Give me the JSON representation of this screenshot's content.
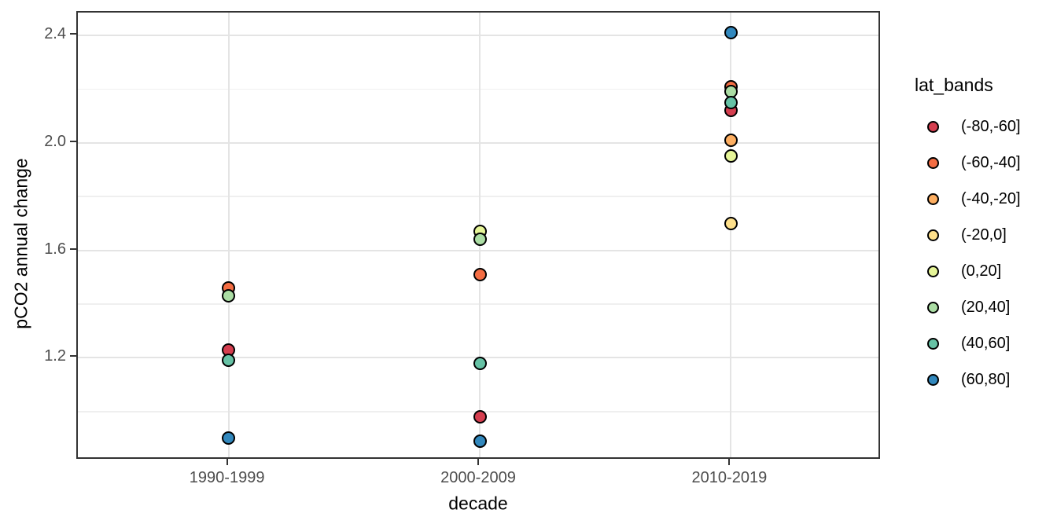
{
  "chart_data": {
    "type": "scatter",
    "title": "",
    "xlabel": "decade",
    "ylabel": "pCO2 annual change",
    "categories": [
      "1990-1999",
      "2000-2009",
      "2010-2019"
    ],
    "ylim": [
      0.818,
      2.485
    ],
    "yticks_major": [
      1.2,
      1.6,
      2.0,
      2.4
    ],
    "yticks_minor": [
      1.0,
      1.4,
      1.8,
      2.2
    ],
    "grid": true,
    "legend": {
      "title": "lat_bands",
      "position": "right"
    },
    "series": [
      {
        "name": "(-80,-60]",
        "color": "#D53E4F",
        "values": [
          1.23,
          0.98,
          2.12
        ]
      },
      {
        "name": "(-60,-40]",
        "color": "#F46D43",
        "values": [
          1.46,
          1.51,
          2.21
        ]
      },
      {
        "name": "(-40,-20]",
        "color": "#FDAE61",
        "values": [
          null,
          null,
          2.01
        ]
      },
      {
        "name": "(-20,0]",
        "color": "#FEE08B",
        "values": [
          null,
          null,
          1.7
        ]
      },
      {
        "name": "(0,20]",
        "color": "#E6F598",
        "values": [
          null,
          1.67,
          1.95
        ]
      },
      {
        "name": "(20,40]",
        "color": "#ABDDA4",
        "values": [
          1.43,
          1.64,
          2.19
        ]
      },
      {
        "name": "(40,60]",
        "color": "#66C2A5",
        "values": [
          1.19,
          1.18,
          2.15
        ]
      },
      {
        "name": "(60,80]",
        "color": "#3288BD",
        "values": [
          0.9,
          0.89,
          2.41
        ]
      }
    ],
    "style": {
      "point_outline": "#000000",
      "axis_text_color": "#4D4D4D",
      "axis_title_color": "#000000",
      "panel_border_color": "#333333",
      "grid_major_color": "#E4E4E4",
      "grid_minor_color": "#EFEFEF",
      "background": "#FFFFFF"
    }
  }
}
